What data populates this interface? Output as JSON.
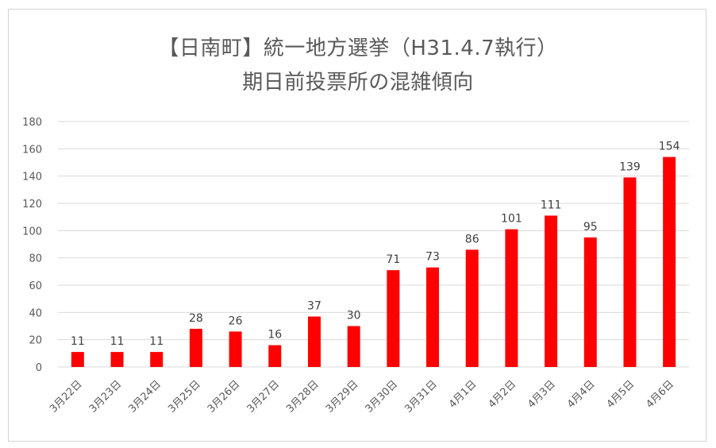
{
  "chart_data": {
    "type": "bar",
    "title_line1": "【日南町】統一地方選挙（H31.4.7執行）",
    "title_line2": "期日前投票所の混雑傾向",
    "categories": [
      "3月22日",
      "3月23日",
      "3月24日",
      "3月25日",
      "3月26日",
      "3月27日",
      "3月28日",
      "3月29日",
      "3月30日",
      "3月31日",
      "4月1日",
      "4月2日",
      "4月3日",
      "4月4日",
      "4月5日",
      "4月6日"
    ],
    "values": [
      11,
      11,
      11,
      28,
      26,
      16,
      37,
      30,
      71,
      73,
      86,
      101,
      111,
      95,
      139,
      154
    ],
    "ylim": [
      0,
      180
    ],
    "yticks": [
      0,
      20,
      40,
      60,
      80,
      100,
      120,
      140,
      160,
      180
    ],
    "grid": true,
    "bar_color": "#ff0000",
    "grid_color": "#d9d9d9",
    "data_labels": true
  }
}
